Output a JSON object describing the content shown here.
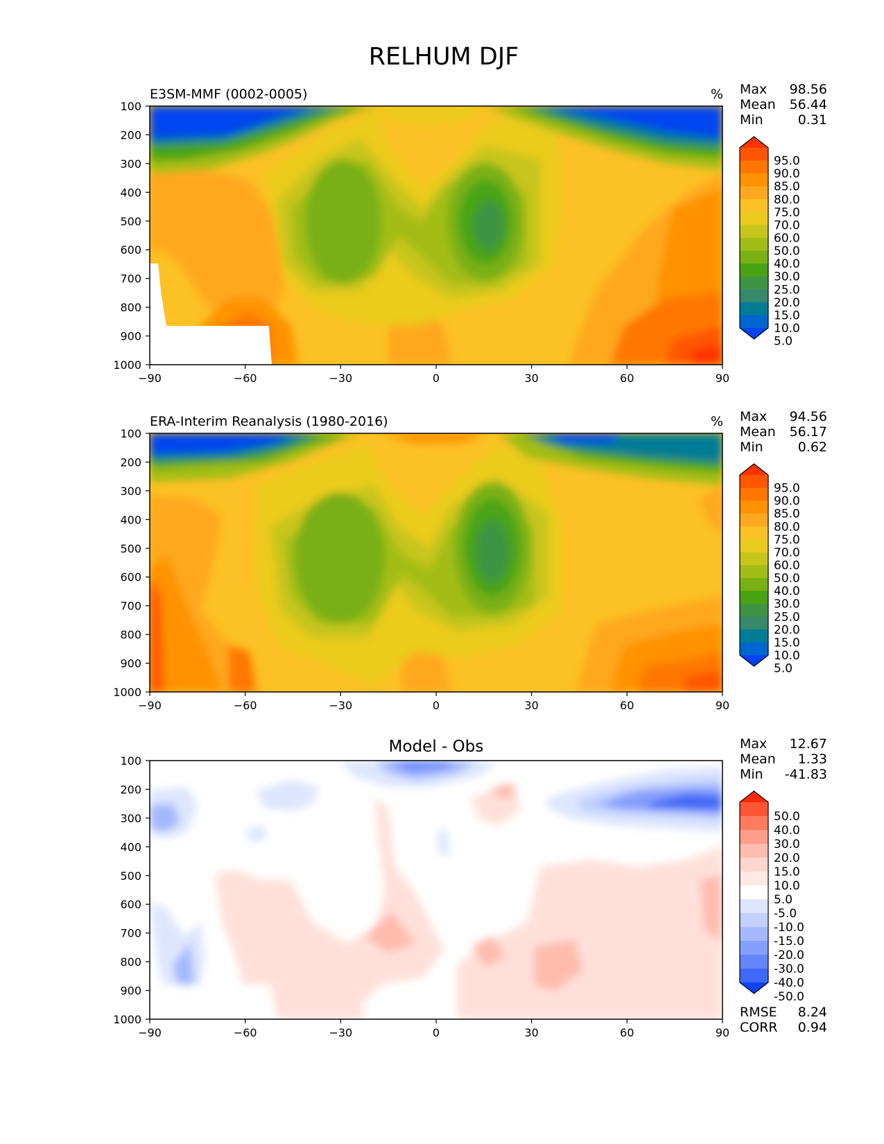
{
  "title": "RELHUM DJF",
  "chart_data": [
    {
      "type": "heatmap",
      "title": "E3SM-MMF (0002-0005)",
      "units": "%",
      "stats": {
        "Max": "98.56",
        "Mean": "56.44",
        "Min": "0.31"
      },
      "x_ticks": [
        "−90",
        "−60",
        "−30",
        "0",
        "30",
        "60",
        "90"
      ],
      "y_ticks": [
        "100",
        "200",
        "300",
        "400",
        "500",
        "600",
        "700",
        "800",
        "900",
        "1000"
      ],
      "xlim": [
        -90,
        90
      ],
      "ylim": [
        1000,
        100
      ],
      "colorbar_levels": [
        "95.0",
        "90.0",
        "85.0",
        "80.0",
        "75.0",
        "70.0",
        "60.0",
        "50.0",
        "40.0",
        "30.0",
        "25.0",
        "20.0",
        "15.0",
        "10.0",
        "5.0"
      ],
      "colorbar_colors": [
        "#ff3300",
        "#ff5500",
        "#ff7700",
        "#ff9200",
        "#ffa81f",
        "#fcc125",
        "#ebcb1e",
        "#c8c51d",
        "#a3bd17",
        "#79b014",
        "#49a412",
        "#3e9442",
        "#37896b",
        "#027c95",
        "#0066d0",
        "#0044f0"
      ],
      "colormap": "Max 98.56 near 90N surface; dry (<5%) above 300 hPa at both poles; moist (>80%) at lower levels of high latitudes"
    },
    {
      "type": "heatmap",
      "title": "ERA-Interim Reanalysis (1980-2016)",
      "units": "%",
      "stats": {
        "Max": "94.56",
        "Mean": "56.17",
        "Min": "0.62"
      },
      "x_ticks": [
        "−90",
        "−60",
        "−30",
        "0",
        "30",
        "60",
        "90"
      ],
      "y_ticks": [
        "100",
        "200",
        "300",
        "400",
        "500",
        "600",
        "700",
        "800",
        "900",
        "1000"
      ],
      "xlim": [
        -90,
        90
      ],
      "ylim": [
        1000,
        100
      ],
      "colorbar_levels": [
        "95.0",
        "90.0",
        "85.0",
        "80.0",
        "75.0",
        "70.0",
        "60.0",
        "50.0",
        "40.0",
        "30.0",
        "25.0",
        "20.0",
        "15.0",
        "10.0",
        "5.0"
      ],
      "colorbar_colors": [
        "#ff3300",
        "#ff5500",
        "#ff7700",
        "#ff9200",
        "#ffa81f",
        "#fcc125",
        "#ebcb1e",
        "#c8c51d",
        "#a3bd17",
        "#79b014",
        "#49a412",
        "#3e9442",
        "#37896b",
        "#027c95",
        "#0066d0",
        "#0044f0"
      ]
    },
    {
      "type": "heatmap",
      "title": "Model - Obs",
      "units": "",
      "stats": {
        "Max": "12.67",
        "Mean": "1.33",
        "Min": "-41.83"
      },
      "extra_stats": {
        "RMSE": "8.24",
        "CORR": "0.94"
      },
      "x_ticks": [
        "−90",
        "−60",
        "−30",
        "0",
        "30",
        "60",
        "90"
      ],
      "y_ticks": [
        "100",
        "200",
        "300",
        "400",
        "500",
        "600",
        "700",
        "800",
        "900",
        "1000"
      ],
      "xlim": [
        -90,
        90
      ],
      "ylim": [
        1000,
        100
      ],
      "colorbar_levels": [
        "50.0",
        "40.0",
        "30.0",
        "20.0",
        "15.0",
        "10.0",
        "5.0",
        "-5.0",
        "-10.0",
        "-15.0",
        "-20.0",
        "-30.0",
        "-40.0",
        "-50.0"
      ],
      "colorbar_colors": [
        "#ff2a0a",
        "#ff5535",
        "#ff7b5f",
        "#ff9e88",
        "#ffbcae",
        "#ffd6cd",
        "#ffe9e4",
        "#ffffff",
        "#dee6fe",
        "#c2d0fe",
        "#a3b8fe",
        "#859ffd",
        "#6485fb",
        "#4068f7",
        "#0a44f0"
      ]
    }
  ]
}
